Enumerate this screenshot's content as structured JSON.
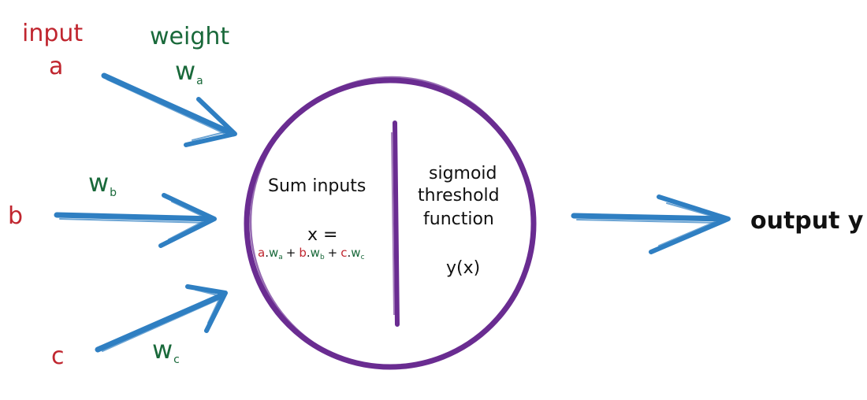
{
  "headers": {
    "input": "input",
    "weight": "weight"
  },
  "inputs": {
    "a": "a",
    "b": "b",
    "c": "c"
  },
  "weights": {
    "w_a": {
      "base": "w",
      "sub": "a"
    },
    "w_b": {
      "base": "w",
      "sub": "b"
    },
    "w_c": {
      "base": "w",
      "sub": "c"
    }
  },
  "sum_block": {
    "title": "Sum inputs",
    "x_eq": "x =",
    "formula": {
      "a": "a",
      "b": "b",
      "c": "c",
      "dot": ".",
      "w": "w",
      "sub_a": "a",
      "sub_b": "b",
      "sub_c": "c",
      "plus": "+"
    }
  },
  "threshold_block": {
    "line1": "sigmoid",
    "line2": "threshold",
    "line3": "function",
    "formula": "y(x)"
  },
  "output": {
    "label": "output y"
  },
  "colors": {
    "input_red": "#c0262f",
    "weight_green": "#19693a",
    "arrow_blue": "#2f7fc2",
    "neuron_purple": "#6a2c91",
    "text_black": "#111111"
  }
}
